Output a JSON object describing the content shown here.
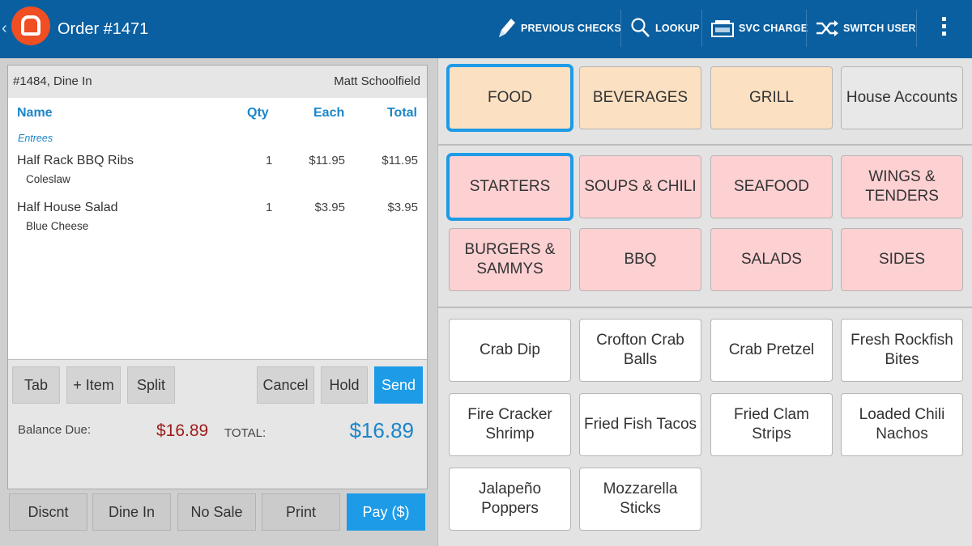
{
  "header": {
    "order_title": "Order #1471",
    "buttons": [
      {
        "label": "PREVIOUS CHECKS",
        "icon": "pencil-icon"
      },
      {
        "label": "LOOKUP",
        "icon": "magnifier-icon"
      },
      {
        "label": "SVC CHARGE",
        "icon": "register-icon"
      },
      {
        "label": "SWITCH USER",
        "icon": "shuffle-icon"
      }
    ],
    "menu_icon": "kebab-menu-icon"
  },
  "ticket": {
    "order_info": "#1484, Dine In",
    "server": "Matt Schoolfield",
    "columns": {
      "name": "Name",
      "qty": "Qty",
      "each": "Each",
      "total": "Total"
    },
    "category": "Entrees",
    "items": [
      {
        "name": "Half Rack BBQ Ribs",
        "modifier": "Coleslaw",
        "qty": "1",
        "each": "$11.95",
        "total": "$11.95"
      },
      {
        "name": "Half House Salad",
        "modifier": "Blue Cheese",
        "qty": "1",
        "each": "$3.95",
        "total": "$3.95"
      }
    ],
    "actions": {
      "tab": "Tab",
      "add_item": "+ Item",
      "split": "Split",
      "cancel": "Cancel",
      "hold": "Hold",
      "send": "Send"
    },
    "balance_label": "Balance Due:",
    "balance_value": "$16.89",
    "total_label": "TOTAL:",
    "total_value": "$16.89"
  },
  "bottom_bar": {
    "discount": "Discnt",
    "dine_in": "Dine In",
    "no_sale": "No Sale",
    "print": "Print",
    "pay": "Pay ($)"
  },
  "menu": {
    "top_categories": [
      "FOOD",
      "BEVERAGES",
      "GRILL",
      "House Accounts"
    ],
    "subcategories": [
      "STARTERS",
      "SOUPS & CHILI",
      "SEAFOOD",
      "WINGS & TENDERS",
      "BURGERS & SAMMYS",
      "BBQ",
      "SALADS",
      "SIDES"
    ],
    "items": [
      "Crab Dip",
      "Crofton Crab Balls",
      "Crab Pretzel",
      "Fresh Rockfish Bites",
      "Fire Cracker Shrimp",
      "Fried Fish Tacos",
      "Fried Clam Strips",
      "Loaded Chili Nachos",
      "Jalapeño Poppers",
      "Mozzarella Sticks"
    ]
  },
  "colors": {
    "header_bg": "#0a5fa0",
    "accent": "#1e9be6",
    "category_tile": "#fce0c2",
    "subcategory_tile": "#fdd0d2",
    "balance": "#9b1b1b"
  }
}
